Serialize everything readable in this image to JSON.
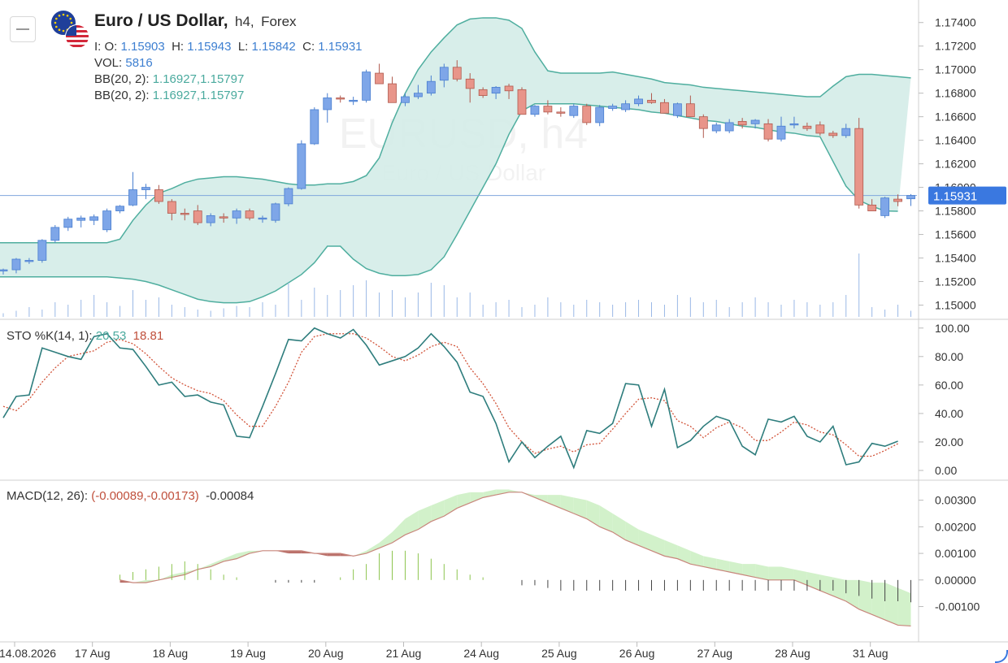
{
  "header": {
    "title": "Euro / US Dollar,",
    "timeframe": "h4,",
    "market": "Forex",
    "ohlc_labels": {
      "o": "I: O:",
      "h": "H:",
      "l": "L:",
      "c": "C:"
    },
    "ohlc_values": {
      "o": "1.15903",
      "h": "1.15943",
      "l": "1.15842",
      "c": "1.15931"
    },
    "vol_label": "VOL:",
    "vol_value": "5816",
    "bb1_label": "BB(20, 2):",
    "bb1_value": "1.16927,1.15797",
    "bb2_label": "BB(20, 2):",
    "bb2_value": "1.16927,1.15797",
    "watermark_symbol": "EURUSD, h4",
    "watermark_name": "Euro / US Dollar"
  },
  "sto_legend": {
    "label": "STO %K(14, 1):",
    "k": "20.53",
    "d": "18.81"
  },
  "macd_legend": {
    "label": "MACD(12, 26):",
    "pair": "(-0.00089,-0.00173)",
    "hist": "-0.00084"
  },
  "price_tag": "1.15931",
  "colors": {
    "up": "#7ea6e8",
    "up_stroke": "#4a7fd0",
    "down": "#e8958a",
    "down_stroke": "#b05a4e",
    "band_fill": "#d4ece8",
    "band_line": "#4fae9f",
    "sto_k": "#2e7d7d",
    "sto_d": "#d2543a",
    "macd_pos": "#cdefc4",
    "macd_neg": "#b3605a",
    "hist_pos": "#8cc44e",
    "hist_neg": "#444444",
    "volume": "#9ab8e6"
  },
  "chart_data": {
    "type": "candlestick",
    "x_labels": [
      "14.08.2026",
      "17 Aug",
      "18 Aug",
      "19 Aug",
      "20 Aug",
      "21 Aug",
      "24 Aug",
      "25 Aug",
      "26 Aug",
      "27 Aug",
      "28 Aug",
      "31 Aug"
    ],
    "x_label_index": [
      0,
      6,
      12,
      18,
      24,
      30,
      36,
      42,
      48,
      54,
      60,
      66
    ],
    "price_ticks": [
      "1.17400",
      "1.17200",
      "1.17000",
      "1.16800",
      "1.16600",
      "1.16400",
      "1.16200",
      "1.16000",
      "1.15800",
      "1.15600",
      "1.15400",
      "1.15200",
      "1.15000"
    ],
    "price_range": [
      1.149,
      1.1755
    ],
    "last_price": 1.15931,
    "sto_ticks": [
      "100.00",
      "80.00",
      "60.00",
      "40.00",
      "20.00",
      "0.00"
    ],
    "sto_range": [
      -4,
      101
    ],
    "macd_ticks": [
      "0.00300",
      "0.00200",
      "0.00100",
      "0.00000",
      "-0.00100"
    ],
    "macd_range": [
      -0.0019,
      0.0036
    ],
    "ohlc": [
      [
        1.1529,
        1.1531,
        1.1526,
        1.153
      ],
      [
        1.153,
        1.154,
        1.1527,
        1.1539
      ],
      [
        1.1537,
        1.154,
        1.1535,
        1.1538
      ],
      [
        1.1538,
        1.1556,
        1.1536,
        1.1555
      ],
      [
        1.1555,
        1.1568,
        1.1553,
        1.1566
      ],
      [
        1.1566,
        1.1575,
        1.1563,
        1.1573
      ],
      [
        1.1572,
        1.1576,
        1.1566,
        1.1574
      ],
      [
        1.1572,
        1.1577,
        1.1568,
        1.1575
      ],
      [
        1.1564,
        1.1582,
        1.1562,
        1.158
      ],
      [
        1.158,
        1.1585,
        1.1578,
        1.1584
      ],
      [
        1.1585,
        1.1613,
        1.1584,
        1.1598
      ],
      [
        1.1598,
        1.1603,
        1.159,
        1.16
      ],
      [
        1.1598,
        1.1602,
        1.1586,
        1.1588
      ],
      [
        1.1588,
        1.159,
        1.1572,
        1.1578
      ],
      [
        1.1578,
        1.1582,
        1.1572,
        1.1577
      ],
      [
        1.158,
        1.1585,
        1.1568,
        1.157
      ],
      [
        1.157,
        1.1578,
        1.1567,
        1.1576
      ],
      [
        1.1575,
        1.1578,
        1.157,
        1.1574
      ],
      [
        1.1574,
        1.1582,
        1.1569,
        1.158
      ],
      [
        1.158,
        1.1582,
        1.1572,
        1.1574
      ],
      [
        1.1573,
        1.1576,
        1.157,
        1.1574
      ],
      [
        1.1572,
        1.1587,
        1.157,
        1.1586
      ],
      [
        1.1586,
        1.16,
        1.1584,
        1.1599
      ],
      [
        1.1599,
        1.164,
        1.1598,
        1.1637
      ],
      [
        1.1637,
        1.1668,
        1.1636,
        1.1666
      ],
      [
        1.1666,
        1.168,
        1.1655,
        1.1676
      ],
      [
        1.1676,
        1.1678,
        1.1672,
        1.1675
      ],
      [
        1.1673,
        1.1677,
        1.167,
        1.1674
      ],
      [
        1.1674,
        1.17,
        1.1672,
        1.1698
      ],
      [
        1.1697,
        1.1705,
        1.1688,
        1.1688
      ],
      [
        1.1688,
        1.1694,
        1.1672,
        1.1672
      ],
      [
        1.1672,
        1.168,
        1.1669,
        1.1677
      ],
      [
        1.1677,
        1.1687,
        1.1675,
        1.168
      ],
      [
        1.168,
        1.1695,
        1.1678,
        1.169
      ],
      [
        1.1691,
        1.1705,
        1.1685,
        1.1702
      ],
      [
        1.1702,
        1.1708,
        1.169,
        1.1692
      ],
      [
        1.1692,
        1.1697,
        1.1672,
        1.1684
      ],
      [
        1.1683,
        1.1685,
        1.1676,
        1.1678
      ],
      [
        1.168,
        1.1686,
        1.1675,
        1.1685
      ],
      [
        1.1686,
        1.1688,
        1.1675,
        1.1682
      ],
      [
        1.1683,
        1.1685,
        1.1662,
        1.1662
      ],
      [
        1.1662,
        1.167,
        1.166,
        1.1669
      ],
      [
        1.1669,
        1.1674,
        1.1662,
        1.1664
      ],
      [
        1.1664,
        1.1668,
        1.166,
        1.1663
      ],
      [
        1.1661,
        1.1671,
        1.1659,
        1.1669
      ],
      [
        1.1669,
        1.1671,
        1.1653,
        1.1655
      ],
      [
        1.1655,
        1.167,
        1.1652,
        1.1668
      ],
      [
        1.1667,
        1.1671,
        1.1665,
        1.1669
      ],
      [
        1.1666,
        1.1674,
        1.1664,
        1.1671
      ],
      [
        1.1671,
        1.1678,
        1.1669,
        1.1675
      ],
      [
        1.1674,
        1.168,
        1.1671,
        1.1672
      ],
      [
        1.1672,
        1.1675,
        1.1663,
        1.1663
      ],
      [
        1.1661,
        1.1672,
        1.1659,
        1.1671
      ],
      [
        1.1671,
        1.1678,
        1.166,
        1.166
      ],
      [
        1.166,
        1.1662,
        1.1642,
        1.165
      ],
      [
        1.1648,
        1.1655,
        1.1646,
        1.1653
      ],
      [
        1.1648,
        1.1658,
        1.1646,
        1.1655
      ],
      [
        1.1656,
        1.1659,
        1.165,
        1.1653
      ],
      [
        1.1654,
        1.1658,
        1.165,
        1.1657
      ],
      [
        1.1654,
        1.1658,
        1.1639,
        1.1641
      ],
      [
        1.1641,
        1.166,
        1.1639,
        1.1652
      ],
      [
        1.1654,
        1.166,
        1.165,
        1.1654
      ],
      [
        1.1652,
        1.1655,
        1.1648,
        1.165
      ],
      [
        1.1653,
        1.1656,
        1.1644,
        1.1646
      ],
      [
        1.1646,
        1.1648,
        1.1642,
        1.1644
      ],
      [
        1.1644,
        1.1654,
        1.1642,
        1.165
      ],
      [
        1.165,
        1.1659,
        1.1582,
        1.1585
      ],
      [
        1.1585,
        1.159,
        1.158,
        1.158
      ],
      [
        1.1576,
        1.1592,
        1.1574,
        1.1591
      ],
      [
        1.159,
        1.1594,
        1.1584,
        1.1588
      ],
      [
        1.15903,
        1.15943,
        1.15842,
        1.15931
      ]
    ],
    "bb_upper": [
      1.1553,
      1.1556,
      1.1572,
      1.1585,
      1.1595,
      1.1599,
      1.1604,
      1.1607,
      1.1608,
      1.1609,
      1.1609,
      1.1608,
      1.1607,
      1.1605,
      1.1603,
      1.1602,
      1.1602,
      1.1603,
      1.1603,
      1.1605,
      1.161,
      1.1625,
      1.1655,
      1.168,
      1.17,
      1.1715,
      1.1727,
      1.1738,
      1.1743,
      1.1744,
      1.1744,
      1.1742,
      1.1735,
      1.1715,
      1.1699,
      1.1697,
      1.1697,
      1.1697,
      1.1697,
      1.1698,
      1.1696,
      1.1694,
      1.1692,
      1.1689,
      1.1688,
      1.1687,
      1.1685,
      1.1684,
      1.1683,
      1.1682,
      1.1681,
      1.168,
      1.1679,
      1.1678,
      1.1677,
      1.1677,
      1.1686,
      1.1694,
      1.1696,
      1.1696,
      1.1695,
      1.1694,
      1.1693
    ],
    "bb_lower": [
      1.1524,
      1.1523,
      1.1522,
      1.152,
      1.1517,
      1.1513,
      1.1509,
      1.1505,
      1.1503,
      1.1502,
      1.1502,
      1.1503,
      1.1507,
      1.1512,
      1.1519,
      1.1526,
      1.1536,
      1.155,
      1.155,
      1.1539,
      1.1531,
      1.1527,
      1.1525,
      1.1525,
      1.1526,
      1.153,
      1.1541,
      1.156,
      1.158,
      1.16,
      1.162,
      1.1645,
      1.1665,
      1.1671,
      1.1671,
      1.1671,
      1.1671,
      1.167,
      1.1669,
      1.1668,
      1.1667,
      1.1666,
      1.1664,
      1.1663,
      1.1661,
      1.1659,
      1.1657,
      1.1656,
      1.1654,
      1.1652,
      1.1651,
      1.1649,
      1.1647,
      1.1646,
      1.1644,
      1.1643,
      1.1622,
      1.1601,
      1.1589,
      1.1584,
      1.158,
      1.15797
    ],
    "bb_x_start": 0,
    "volume": [
      3,
      5,
      8,
      6,
      12,
      10,
      14,
      18,
      12,
      9,
      22,
      14,
      16,
      10,
      8,
      6,
      5,
      7,
      9,
      8,
      12,
      10,
      28,
      14,
      24,
      18,
      22,
      26,
      30,
      20,
      22,
      16,
      20,
      28,
      26,
      16,
      20,
      10,
      12,
      14,
      8,
      10,
      16,
      12,
      10,
      14,
      12,
      10,
      12,
      14,
      12,
      10,
      18,
      16,
      12,
      14,
      8,
      12,
      16,
      12,
      10,
      14,
      12,
      10,
      12,
      18,
      52,
      8,
      6,
      10,
      5
    ],
    "sto_k": [
      37,
      52,
      53,
      86,
      83,
      80,
      78,
      94,
      96,
      86,
      85,
      73,
      60,
      62,
      52,
      53,
      48,
      46,
      24,
      23,
      45,
      68,
      92,
      91,
      100,
      96,
      93,
      99,
      88,
      74,
      77,
      80,
      86,
      96,
      87,
      76,
      55,
      52,
      33,
      6,
      20,
      9,
      17,
      24,
      2,
      28,
      26,
      33,
      61,
      60,
      31,
      57,
      16,
      21,
      31,
      38,
      35,
      17,
      11,
      36,
      34,
      38,
      24,
      20,
      31,
      4,
      6,
      19,
      17,
      20.53
    ],
    "sto_d": [
      45,
      42,
      50,
      62,
      72,
      80,
      82,
      84,
      90,
      92,
      89,
      82,
      73,
      65,
      60,
      56,
      54,
      49,
      39,
      31,
      31,
      45,
      62,
      83,
      94,
      96,
      96,
      96,
      93,
      87,
      80,
      77,
      81,
      87,
      90,
      87,
      72,
      61,
      47,
      30,
      20,
      12,
      15,
      17,
      13,
      18,
      19,
      29,
      40,
      50,
      51,
      49,
      35,
      31,
      23,
      30,
      34,
      30,
      21,
      21,
      27,
      34,
      32,
      27,
      25,
      18,
      10,
      10,
      14,
      18.81
    ],
    "macd_line": [
      -0.0001,
      -0.0001,
      -0.0,
      0.0,
      0.0002,
      0.0003,
      0.0004,
      0.0006,
      0.0008,
      0.001,
      0.0011,
      0.0011,
      0.0011,
      0.001,
      0.001,
      0.001,
      0.0009,
      0.0009,
      0.0009,
      0.0011,
      0.0014,
      0.0018,
      0.0023,
      0.0026,
      0.0028,
      0.003,
      0.0032,
      0.0033,
      0.0033,
      0.0034,
      0.0034,
      0.0033,
      0.0032,
      0.0032,
      0.0032,
      0.0031,
      0.003,
      0.0028,
      0.0025,
      0.0022,
      0.0019,
      0.0017,
      0.0015,
      0.0013,
      0.0011,
      0.0009,
      0.0008,
      0.0007,
      0.0006,
      0.0006,
      0.0005,
      0.0005,
      0.0004,
      0.0003,
      0.0002,
      0.0001,
      0.0,
      -0.0,
      -0.0001,
      -0.0001,
      -0.0003,
      -0.0005,
      -0.0006,
      -0.00089
    ],
    "macd_signal": [
      -0.0,
      -0.0001,
      -0.0001,
      0.0,
      0.0001,
      0.0002,
      0.0004,
      0.0005,
      0.0007,
      0.0008,
      0.001,
      0.0011,
      0.0011,
      0.0011,
      0.0011,
      0.001,
      0.001,
      0.001,
      0.0009,
      0.001,
      0.0012,
      0.0014,
      0.0017,
      0.0019,
      0.0022,
      0.0024,
      0.0027,
      0.0029,
      0.0031,
      0.0032,
      0.0033,
      0.0033,
      0.0031,
      0.0029,
      0.0027,
      0.0025,
      0.0023,
      0.002,
      0.0018,
      0.0015,
      0.0013,
      0.0011,
      0.0009,
      0.0008,
      0.0006,
      0.0005,
      0.0004,
      0.0003,
      0.0002,
      0.0001,
      0.0,
      0.0,
      -0.0,
      -0.0002,
      -0.0004,
      -0.0006,
      -0.0008,
      -0.0011,
      -0.0013,
      -0.0015,
      -0.0017,
      -0.00173
    ],
    "macd_hist": [
      0,
      0,
      0,
      0.0002,
      0.0003,
      0.0004,
      0.0005,
      0.0006,
      0.0007,
      0.0006,
      0.0004,
      0.0002,
      0.0001,
      0.0,
      -0.0,
      -0.0001,
      -0.0001,
      -0.0001,
      -0.0001,
      -0.0,
      0.0001,
      0.0004,
      0.0006,
      0.001,
      0.0011,
      0.0011,
      0.001,
      0.0008,
      0.0006,
      0.0004,
      0.0002,
      0.0001,
      0.0,
      0.0,
      -0.0002,
      -0.0002,
      -0.0003,
      -0.0004,
      -0.0004,
      -0.0004,
      -0.0004,
      -0.0004,
      -0.0004,
      -0.0004,
      -0.0004,
      -0.0004,
      -0.0004,
      -0.0004,
      -0.0004,
      -0.0004,
      -0.0004,
      -0.0004,
      -0.0004,
      -0.0004,
      -0.0004,
      -0.0004,
      -0.0004,
      -0.0004,
      -0.0004,
      -0.0005,
      -0.0006,
      -0.0007,
      -0.0008,
      -0.0008,
      -0.00084
    ]
  }
}
